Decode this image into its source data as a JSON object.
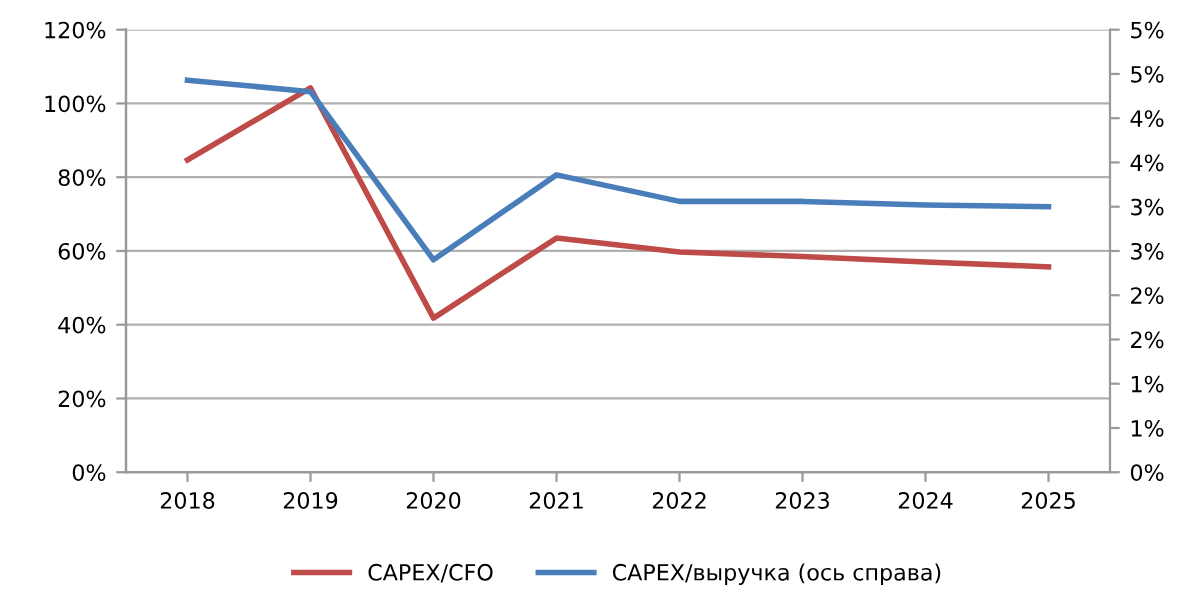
{
  "chart_data": {
    "type": "line",
    "categories": [
      "2018",
      "2019",
      "2020",
      "2021",
      "2022",
      "2023",
      "2024",
      "2025"
    ],
    "series": [
      {
        "name": "CAPEX/CFO",
        "color": "#be4b48",
        "values": [
          84.7,
          104.2,
          41.8,
          63.5,
          59.7,
          58.5,
          57.0,
          55.7
        ]
      },
      {
        "name": "CAPEX/выручка (ось справа)",
        "color": "#4a7ebb",
        "axis": "y2",
        "values": [
          4.43,
          4.3,
          2.4,
          3.36,
          3.06,
          3.06,
          3.02,
          3.0
        ]
      }
    ],
    "ylim": [
      0,
      120
    ],
    "yticks": [
      {
        "value": 0,
        "label": "0%"
      },
      {
        "value": 20,
        "label": "20%"
      },
      {
        "value": 40,
        "label": "40%"
      },
      {
        "value": 60,
        "label": "60%"
      },
      {
        "value": 80,
        "label": "80%"
      },
      {
        "value": 100,
        "label": "100%"
      },
      {
        "value": 120,
        "label": "120%"
      }
    ],
    "y2lim": [
      0,
      5
    ],
    "y2ticks": [
      {
        "value": 0,
        "label": "0%"
      },
      {
        "value": 0.5,
        "label": "1%"
      },
      {
        "value": 1,
        "label": "1%"
      },
      {
        "value": 1.5,
        "label": "2%"
      },
      {
        "value": 2,
        "label": "2%"
      },
      {
        "value": 2.5,
        "label": "3%"
      },
      {
        "value": 3,
        "label": "3%"
      },
      {
        "value": 3.5,
        "label": "4%"
      },
      {
        "value": 4,
        "label": "4%"
      },
      {
        "value": 4.5,
        "label": "5%"
      },
      {
        "value": 5,
        "label": "5%"
      }
    ],
    "grid": "y",
    "legend": "bottom",
    "marker": "none",
    "line_style": "solid"
  }
}
